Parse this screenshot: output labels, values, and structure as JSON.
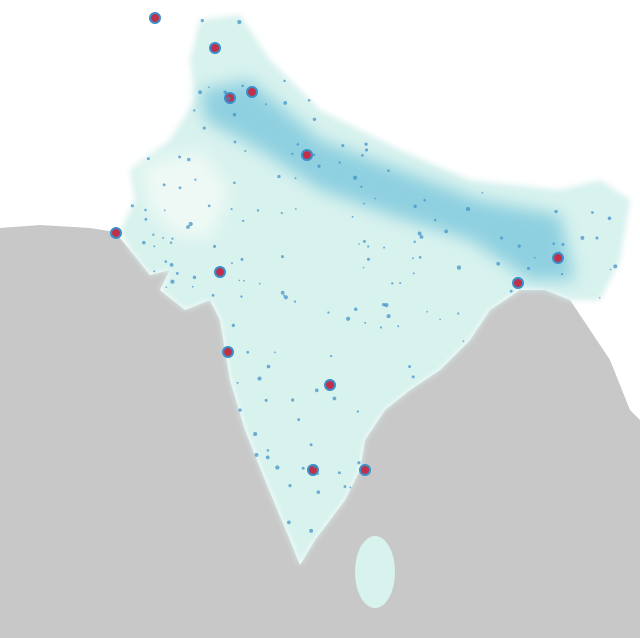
{
  "map": {
    "colors": {
      "sea": "#c8c8c8",
      "empty_land": "#ffffff",
      "low_density": "#d8f2ee",
      "medium_density": "#8fd0e0",
      "high_density": "#3b8fc8",
      "urban_core": "#c0304a"
    }
  }
}
